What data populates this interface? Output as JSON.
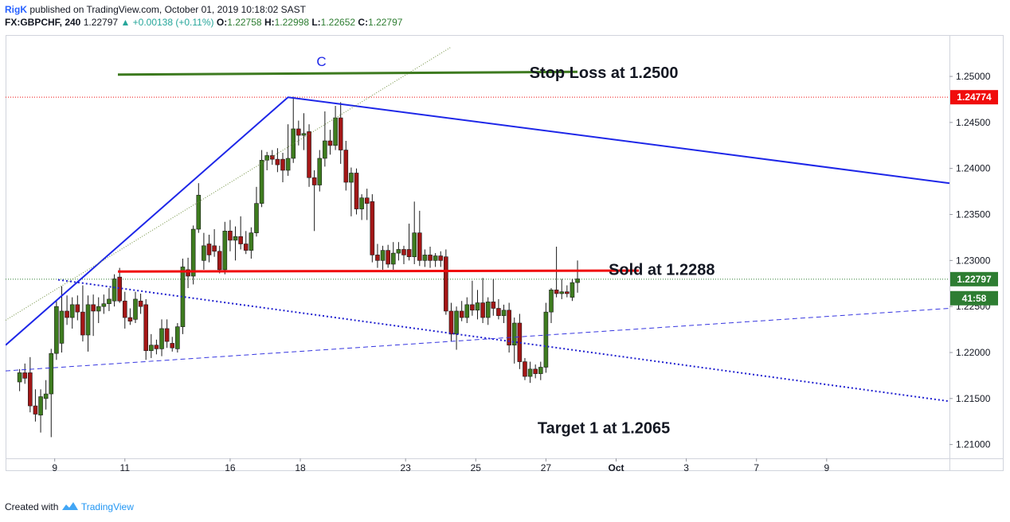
{
  "header": {
    "author": "RigK",
    "published": "published on TradingView.com, October 01, 2019 10:18:02 SAST",
    "symbol": "FX:GBPCHF, 240",
    "last": "1.22797",
    "change": "▲ +0.00138 (+0.11%)",
    "o_label": "O:",
    "o": "1.22758",
    "h_label": "H:",
    "h": "1.22998",
    "l_label": "L:",
    "l": "1.22652",
    "c_label": "C:",
    "c": "1.22797"
  },
  "footer": {
    "created_with": "Created with",
    "brand": "TradingView"
  },
  "chart_data": {
    "type": "candlestick",
    "ylim": [
      1.2085,
      1.2545
    ],
    "xlim": [
      -0.4,
      26.5
    ],
    "y_ticks": [
      "1.25000",
      "1.24500",
      "1.24000",
      "1.23500",
      "1.23000",
      "1.22500",
      "1.22000",
      "1.21500",
      "1.21000"
    ],
    "y_tick_values": [
      1.25,
      1.245,
      1.24,
      1.235,
      1.23,
      1.225,
      1.22,
      1.215,
      1.21
    ],
    "x_ticks": [
      {
        "label": "9",
        "x": 1
      },
      {
        "label": "11",
        "x": 3
      },
      {
        "label": "16",
        "x": 6
      },
      {
        "label": "18",
        "x": 8
      },
      {
        "label": "23",
        "x": 11
      },
      {
        "label": "25",
        "x": 13
      },
      {
        "label": "27",
        "x": 15
      },
      {
        "label": "Oct",
        "x": 17
      },
      {
        "label": "3",
        "x": 19
      },
      {
        "label": "7",
        "x": 21
      },
      {
        "label": "9",
        "x": 23
      }
    ],
    "price_labels": [
      {
        "text": "1.24774",
        "value": 1.24774,
        "color": "#f00c0c"
      },
      {
        "text": "1.22797",
        "value": 1.22797,
        "color": "#2e7d32"
      },
      {
        "text": "41:58",
        "value": 1.2259,
        "color": "#2e7d32"
      }
    ],
    "reference_lines": [
      {
        "value": 1.24774,
        "color": "#f00c0c"
      },
      {
        "value": 1.22797,
        "color": "#2e7d32"
      }
    ],
    "drawings": [
      {
        "kind": "solid",
        "color": "#1e27e8",
        "width": 2,
        "points": [
          [
            -0.4,
            1.2208
          ],
          [
            7.65,
            1.24774
          ],
          [
            26.5,
            1.2384
          ]
        ]
      },
      {
        "kind": "dotted",
        "color": "#6f8f3f",
        "width": 1,
        "points": [
          [
            -0.4,
            1.2235
          ],
          [
            12.3,
            1.2532
          ]
        ]
      },
      {
        "kind": "dotted",
        "color": "#2020d0",
        "width": 2,
        "points": [
          [
            1.1,
            1.2279
          ],
          [
            26.5,
            1.2147
          ]
        ]
      },
      {
        "kind": "dashed",
        "color": "#3636e0",
        "width": 1,
        "points": [
          [
            -0.4,
            1.218
          ],
          [
            26.5,
            1.2248
          ]
        ]
      },
      {
        "kind": "solid",
        "color": "#3d7a1f",
        "width": 3,
        "points": [
          [
            2.8,
            1.2502
          ],
          [
            15.9,
            1.2505
          ]
        ]
      },
      {
        "kind": "solid",
        "color": "#f00c0c",
        "width": 3,
        "points": [
          [
            2.8,
            1.2288
          ],
          [
            17.65,
            1.2289
          ]
        ]
      }
    ],
    "annotations": [
      {
        "text": "C",
        "x": 8.6,
        "y": 1.2515,
        "color": "#1e27e8",
        "size": 17,
        "bold": false
      },
      {
        "text": "Stop Loss at 1.2500",
        "x": 16.65,
        "y": 1.2503,
        "color": "#131722",
        "size": 20,
        "bold": true
      },
      {
        "text": "Sold at 1.2288",
        "x": 18.3,
        "y": 1.2289,
        "color": "#131722",
        "size": 20,
        "bold": true
      },
      {
        "text": "Target 1 at 1.2065",
        "x": 16.65,
        "y": 1.2117,
        "color": "#131722",
        "size": 20,
        "bold": true
      }
    ],
    "candles": [
      {
        "x": 0.0,
        "o": 1.2168,
        "h": 1.2182,
        "l": 1.2158,
        "c": 1.2178
      },
      {
        "x": 0.15,
        "o": 1.2178,
        "h": 1.2188,
        "l": 1.2166,
        "c": 1.2172
      },
      {
        "x": 0.3,
        "o": 1.2178,
        "h": 1.2195,
        "l": 1.2135,
        "c": 1.2142
      },
      {
        "x": 0.45,
        "o": 1.2142,
        "h": 1.216,
        "l": 1.2125,
        "c": 1.2133
      },
      {
        "x": 0.6,
        "o": 1.2132,
        "h": 1.216,
        "l": 1.2113,
        "c": 1.2152
      },
      {
        "x": 0.75,
        "o": 1.215,
        "h": 1.217,
        "l": 1.2138,
        "c": 1.2155
      },
      {
        "x": 0.9,
        "o": 1.2155,
        "h": 1.2204,
        "l": 1.2108,
        "c": 1.2199
      },
      {
        "x": 1.05,
        "o": 1.2199,
        "h": 1.2257,
        "l": 1.2192,
        "c": 1.225
      },
      {
        "x": 1.2,
        "o": 1.221,
        "h": 1.2272,
        "l": 1.22,
        "c": 1.2245
      },
      {
        "x": 1.35,
        "o": 1.2245,
        "h": 1.2262,
        "l": 1.223,
        "c": 1.2238
      },
      {
        "x": 1.5,
        "o": 1.2238,
        "h": 1.226,
        "l": 1.2226,
        "c": 1.2252
      },
      {
        "x": 1.65,
        "o": 1.2252,
        "h": 1.2262,
        "l": 1.2235,
        "c": 1.2244
      },
      {
        "x": 1.8,
        "o": 1.2244,
        "h": 1.2273,
        "l": 1.2212,
        "c": 1.2219
      },
      {
        "x": 1.95,
        "o": 1.2219,
        "h": 1.2262,
        "l": 1.2201,
        "c": 1.2252
      },
      {
        "x": 2.1,
        "o": 1.2252,
        "h": 1.2263,
        "l": 1.2218,
        "c": 1.2245
      },
      {
        "x": 2.25,
        "o": 1.2245,
        "h": 1.226,
        "l": 1.2232,
        "c": 1.225
      },
      {
        "x": 2.4,
        "o": 1.225,
        "h": 1.2263,
        "l": 1.2242,
        "c": 1.2253
      },
      {
        "x": 2.55,
        "o": 1.2253,
        "h": 1.227,
        "l": 1.2245,
        "c": 1.2258
      },
      {
        "x": 2.7,
        "o": 1.2256,
        "h": 1.2285,
        "l": 1.225,
        "c": 1.228
      },
      {
        "x": 2.85,
        "o": 1.2282,
        "h": 1.2292,
        "l": 1.2254,
        "c": 1.2256
      },
      {
        "x": 3.0,
        "o": 1.2256,
        "h": 1.2266,
        "l": 1.2226,
        "c": 1.2238
      },
      {
        "x": 3.15,
        "o": 1.2238,
        "h": 1.2248,
        "l": 1.223,
        "c": 1.2234
      },
      {
        "x": 3.3,
        "o": 1.2236,
        "h": 1.2266,
        "l": 1.2232,
        "c": 1.2258
      },
      {
        "x": 3.45,
        "o": 1.2256,
        "h": 1.2264,
        "l": 1.2242,
        "c": 1.225
      },
      {
        "x": 3.6,
        "o": 1.2252,
        "h": 1.2258,
        "l": 1.2192,
        "c": 1.2202
      },
      {
        "x": 3.75,
        "o": 1.2202,
        "h": 1.222,
        "l": 1.2194,
        "c": 1.2208
      },
      {
        "x": 3.9,
        "o": 1.2208,
        "h": 1.2214,
        "l": 1.2198,
        "c": 1.2204
      },
      {
        "x": 4.05,
        "o": 1.2204,
        "h": 1.2236,
        "l": 1.2196,
        "c": 1.2226
      },
      {
        "x": 4.2,
        "o": 1.2226,
        "h": 1.2236,
        "l": 1.2205,
        "c": 1.2212
      },
      {
        "x": 4.35,
        "o": 1.221,
        "h": 1.2217,
        "l": 1.2201,
        "c": 1.2205
      },
      {
        "x": 4.5,
        "o": 1.2204,
        "h": 1.2232,
        "l": 1.22,
        "c": 1.2228
      },
      {
        "x": 4.65,
        "o": 1.2228,
        "h": 1.2302,
        "l": 1.222,
        "c": 1.2293
      },
      {
        "x": 4.8,
        "o": 1.229,
        "h": 1.2303,
        "l": 1.227,
        "c": 1.2283
      },
      {
        "x": 4.95,
        "o": 1.2283,
        "h": 1.2338,
        "l": 1.2274,
        "c": 1.2334
      },
      {
        "x": 5.1,
        "o": 1.2334,
        "h": 1.2384,
        "l": 1.233,
        "c": 1.2371
      },
      {
        "x": 5.25,
        "o": 1.23,
        "h": 1.233,
        "l": 1.229,
        "c": 1.2316
      },
      {
        "x": 5.4,
        "o": 1.2318,
        "h": 1.2328,
        "l": 1.2298,
        "c": 1.2306
      },
      {
        "x": 5.55,
        "o": 1.2316,
        "h": 1.2334,
        "l": 1.2304,
        "c": 1.231
      },
      {
        "x": 5.7,
        "o": 1.231,
        "h": 1.2316,
        "l": 1.2286,
        "c": 1.229
      },
      {
        "x": 5.85,
        "o": 1.229,
        "h": 1.2342,
        "l": 1.2285,
        "c": 1.2332
      },
      {
        "x": 6.0,
        "o": 1.2332,
        "h": 1.2344,
        "l": 1.231,
        "c": 1.2322
      },
      {
        "x": 6.15,
        "o": 1.2322,
        "h": 1.2337,
        "l": 1.23,
        "c": 1.2326
      },
      {
        "x": 6.3,
        "o": 1.2326,
        "h": 1.2348,
        "l": 1.2312,
        "c": 1.2318
      },
      {
        "x": 6.45,
        "o": 1.2318,
        "h": 1.2332,
        "l": 1.2307,
        "c": 1.2311
      },
      {
        "x": 6.6,
        "o": 1.2311,
        "h": 1.2336,
        "l": 1.2302,
        "c": 1.233
      },
      {
        "x": 6.75,
        "o": 1.233,
        "h": 1.238,
        "l": 1.2326,
        "c": 1.2362
      },
      {
        "x": 6.9,
        "o": 1.2362,
        "h": 1.242,
        "l": 1.2358,
        "c": 1.2409
      },
      {
        "x": 7.05,
        "o": 1.2409,
        "h": 1.2418,
        "l": 1.2398,
        "c": 1.2414
      },
      {
        "x": 7.2,
        "o": 1.2414,
        "h": 1.242,
        "l": 1.2404,
        "c": 1.241
      },
      {
        "x": 7.35,
        "o": 1.241,
        "h": 1.2422,
        "l": 1.2396,
        "c": 1.2404
      },
      {
        "x": 7.5,
        "o": 1.241,
        "h": 1.2417,
        "l": 1.2385,
        "c": 1.2398
      },
      {
        "x": 7.65,
        "o": 1.2398,
        "h": 1.2448,
        "l": 1.2392,
        "c": 1.2411
      },
      {
        "x": 7.8,
        "o": 1.2411,
        "h": 1.2478,
        "l": 1.2406,
        "c": 1.2443
      },
      {
        "x": 7.95,
        "o": 1.2443,
        "h": 1.2452,
        "l": 1.2425,
        "c": 1.2436
      },
      {
        "x": 8.1,
        "o": 1.2436,
        "h": 1.246,
        "l": 1.242,
        "c": 1.2438
      },
      {
        "x": 8.25,
        "o": 1.244,
        "h": 1.2448,
        "l": 1.238,
        "c": 1.239
      },
      {
        "x": 8.4,
        "o": 1.239,
        "h": 1.2398,
        "l": 1.2332,
        "c": 1.2382
      },
      {
        "x": 8.55,
        "o": 1.2382,
        "h": 1.242,
        "l": 1.2375,
        "c": 1.2411
      },
      {
        "x": 8.7,
        "o": 1.2411,
        "h": 1.2462,
        "l": 1.2402,
        "c": 1.243
      },
      {
        "x": 8.85,
        "o": 1.243,
        "h": 1.2442,
        "l": 1.2415,
        "c": 1.2425
      },
      {
        "x": 9.0,
        "o": 1.2425,
        "h": 1.2468,
        "l": 1.242,
        "c": 1.2455
      },
      {
        "x": 9.15,
        "o": 1.2455,
        "h": 1.2472,
        "l": 1.2405,
        "c": 1.242
      },
      {
        "x": 9.3,
        "o": 1.242,
        "h": 1.243,
        "l": 1.2376,
        "c": 1.2385
      },
      {
        "x": 9.45,
        "o": 1.2385,
        "h": 1.2401,
        "l": 1.2348,
        "c": 1.2395
      },
      {
        "x": 9.6,
        "o": 1.2395,
        "h": 1.24,
        "l": 1.235,
        "c": 1.2356
      },
      {
        "x": 9.75,
        "o": 1.2356,
        "h": 1.2372,
        "l": 1.2344,
        "c": 1.2368
      },
      {
        "x": 9.9,
        "o": 1.2368,
        "h": 1.2378,
        "l": 1.2344,
        "c": 1.2362
      },
      {
        "x": 10.05,
        "o": 1.2364,
        "h": 1.2372,
        "l": 1.2298,
        "c": 1.2306
      },
      {
        "x": 10.2,
        "o": 1.2306,
        "h": 1.2318,
        "l": 1.2292,
        "c": 1.23
      },
      {
        "x": 10.35,
        "o": 1.23,
        "h": 1.2316,
        "l": 1.229,
        "c": 1.2311
      },
      {
        "x": 10.5,
        "o": 1.2311,
        "h": 1.2317,
        "l": 1.2292,
        "c": 1.2296
      },
      {
        "x": 10.65,
        "o": 1.2296,
        "h": 1.232,
        "l": 1.229,
        "c": 1.2308
      },
      {
        "x": 10.8,
        "o": 1.2308,
        "h": 1.232,
        "l": 1.23,
        "c": 1.2312
      },
      {
        "x": 10.95,
        "o": 1.2312,
        "h": 1.2316,
        "l": 1.2296,
        "c": 1.2306
      },
      {
        "x": 11.1,
        "o": 1.2312,
        "h": 1.234,
        "l": 1.23,
        "c": 1.2304
      },
      {
        "x": 11.25,
        "o": 1.2304,
        "h": 1.2364,
        "l": 1.2296,
        "c": 1.233
      },
      {
        "x": 11.4,
        "o": 1.233,
        "h": 1.2354,
        "l": 1.2294,
        "c": 1.23
      },
      {
        "x": 11.55,
        "o": 1.23,
        "h": 1.2312,
        "l": 1.2293,
        "c": 1.2306
      },
      {
        "x": 11.7,
        "o": 1.2306,
        "h": 1.2315,
        "l": 1.2292,
        "c": 1.23
      },
      {
        "x": 11.85,
        "o": 1.23,
        "h": 1.2308,
        "l": 1.2293,
        "c": 1.2305
      },
      {
        "x": 12.0,
        "o": 1.2305,
        "h": 1.231,
        "l": 1.2293,
        "c": 1.23
      },
      {
        "x": 12.15,
        "o": 1.2304,
        "h": 1.2312,
        "l": 1.2241,
        "c": 1.2245
      },
      {
        "x": 12.3,
        "o": 1.2245,
        "h": 1.2254,
        "l": 1.2212,
        "c": 1.222
      },
      {
        "x": 12.45,
        "o": 1.222,
        "h": 1.225,
        "l": 1.2203,
        "c": 1.2245
      },
      {
        "x": 12.6,
        "o": 1.2245,
        "h": 1.2256,
        "l": 1.2234,
        "c": 1.2238
      },
      {
        "x": 12.75,
        "o": 1.2238,
        "h": 1.226,
        "l": 1.2232,
        "c": 1.2252
      },
      {
        "x": 12.9,
        "o": 1.2252,
        "h": 1.2278,
        "l": 1.224,
        "c": 1.2246
      },
      {
        "x": 13.05,
        "o": 1.2246,
        "h": 1.2268,
        "l": 1.2236,
        "c": 1.2254
      },
      {
        "x": 13.2,
        "o": 1.2254,
        "h": 1.2281,
        "l": 1.2232,
        "c": 1.2238
      },
      {
        "x": 13.35,
        "o": 1.2238,
        "h": 1.226,
        "l": 1.223,
        "c": 1.2255
      },
      {
        "x": 13.5,
        "o": 1.2255,
        "h": 1.228,
        "l": 1.224,
        "c": 1.2248
      },
      {
        "x": 13.65,
        "o": 1.2248,
        "h": 1.2258,
        "l": 1.2236,
        "c": 1.224
      },
      {
        "x": 13.8,
        "o": 1.224,
        "h": 1.2252,
        "l": 1.2232,
        "c": 1.2246
      },
      {
        "x": 13.95,
        "o": 1.2246,
        "h": 1.2254,
        "l": 1.22,
        "c": 1.2208
      },
      {
        "x": 14.1,
        "o": 1.2208,
        "h": 1.2238,
        "l": 1.2188,
        "c": 1.2232
      },
      {
        "x": 14.25,
        "o": 1.2232,
        "h": 1.2242,
        "l": 1.2182,
        "c": 1.219
      },
      {
        "x": 14.4,
        "o": 1.219,
        "h": 1.2194,
        "l": 1.217,
        "c": 1.2174
      },
      {
        "x": 14.55,
        "o": 1.2174,
        "h": 1.219,
        "l": 1.2167,
        "c": 1.2182
      },
      {
        "x": 14.7,
        "o": 1.2182,
        "h": 1.2187,
        "l": 1.2172,
        "c": 1.2177
      },
      {
        "x": 14.85,
        "o": 1.2177,
        "h": 1.219,
        "l": 1.217,
        "c": 1.2184
      },
      {
        "x": 15.0,
        "o": 1.2184,
        "h": 1.2254,
        "l": 1.2178,
        "c": 1.2244
      },
      {
        "x": 15.15,
        "o": 1.2244,
        "h": 1.227,
        "l": 1.2232,
        "c": 1.2268
      },
      {
        "x": 15.3,
        "o": 1.2268,
        "h": 1.2315,
        "l": 1.226,
        "c": 1.2264
      },
      {
        "x": 15.45,
        "o": 1.2264,
        "h": 1.228,
        "l": 1.2258,
        "c": 1.2266
      },
      {
        "x": 15.6,
        "o": 1.2266,
        "h": 1.2273,
        "l": 1.226,
        "c": 1.2264
      },
      {
        "x": 15.75,
        "o": 1.226,
        "h": 1.228,
        "l": 1.2256,
        "c": 1.2276
      },
      {
        "x": 15.9,
        "o": 1.2276,
        "h": 1.23,
        "l": 1.2265,
        "c": 1.228
      }
    ]
  }
}
